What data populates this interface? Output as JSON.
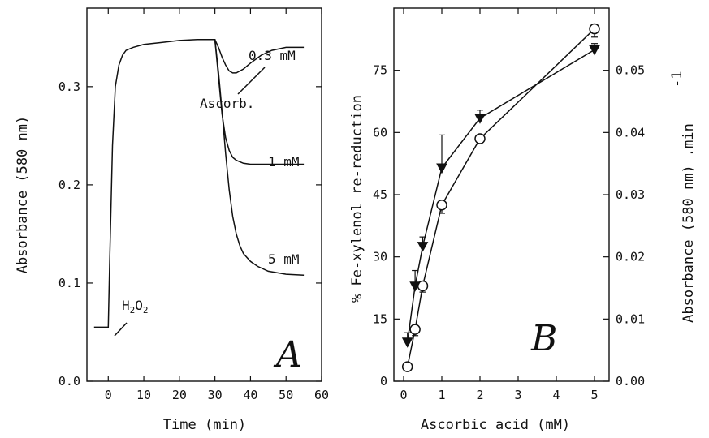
{
  "chart_data": [
    {
      "type": "line",
      "panel_label": "A",
      "xlabel": "Time (min)",
      "ylabel": "Absorbance (580 nm)",
      "xlim": [
        -6,
        60
      ],
      "ylim": [
        0.0,
        0.38
      ],
      "xticks": [
        0,
        10,
        20,
        30,
        40,
        50,
        60
      ],
      "yticks": [
        0.0,
        0.1,
        0.2,
        0.3
      ],
      "annotations": [
        "H₂O₂",
        "Ascorb."
      ],
      "series": [
        {
          "name": "0.3 mM",
          "x": [
            -4,
            0,
            0.4,
            1.2,
            2,
            3,
            4,
            5,
            7,
            10,
            15,
            20,
            25,
            29,
            30,
            31,
            32,
            33,
            34,
            35,
            36,
            38,
            40,
            43,
            46,
            50,
            53,
            55
          ],
          "y": [
            0.055,
            0.055,
            0.12,
            0.24,
            0.3,
            0.322,
            0.332,
            0.337,
            0.34,
            0.343,
            0.345,
            0.347,
            0.348,
            0.348,
            0.348,
            0.34,
            0.33,
            0.322,
            0.316,
            0.314,
            0.314,
            0.318,
            0.324,
            0.332,
            0.337,
            0.34,
            0.34,
            0.34
          ]
        },
        {
          "name": "1 mM",
          "x": [
            29,
            30,
            31,
            32,
            33,
            34,
            35,
            36,
            38,
            40,
            43,
            47,
            50,
            55
          ],
          "y": [
            0.348,
            0.348,
            0.31,
            0.272,
            0.248,
            0.235,
            0.228,
            0.225,
            0.222,
            0.221,
            0.221,
            0.221,
            0.221,
            0.221
          ]
        },
        {
          "name": "5 mM",
          "x": [
            29,
            30,
            31,
            32,
            33,
            34,
            35,
            36,
            37,
            38,
            40,
            42,
            45,
            50,
            55
          ],
          "y": [
            0.348,
            0.348,
            0.315,
            0.275,
            0.232,
            0.195,
            0.168,
            0.15,
            0.138,
            0.13,
            0.122,
            0.117,
            0.112,
            0.109,
            0.108
          ]
        }
      ]
    },
    {
      "type": "scatter",
      "panel_label": "B",
      "xlabel": "Ascorbic acid (mM)",
      "ylabel": "% Fe-xylenol re-reduction",
      "y2label": "Absorbance (580 nm) .min",
      "y2label_superscript": "-1",
      "xlim": [
        0,
        5.2
      ],
      "ylim": [
        0,
        90
      ],
      "y2lim": [
        0,
        0.06
      ],
      "xticks": [
        0,
        1,
        2,
        3,
        4,
        5
      ],
      "yticks": [
        0,
        15,
        30,
        45,
        60,
        75
      ],
      "y2ticks": [
        "0.00",
        "0.01",
        "0.02",
        "0.03",
        "0.04",
        "0.05"
      ],
      "series": [
        {
          "marker": "open-circle",
          "axis": "left",
          "x": [
            0.1,
            0.3,
            0.5,
            1,
            2,
            5
          ],
          "y": [
            3.5,
            12.5,
            23,
            42.5,
            58.5,
            85
          ],
          "err": [
            0,
            1.5,
            1.5,
            2,
            0,
            2
          ]
        },
        {
          "marker": "filled-triangle",
          "axis": "right",
          "x": [
            0.1,
            0.3,
            0.5,
            1,
            2,
            5
          ],
          "y": [
            0.0063,
            0.0153,
            0.0217,
            0.0343,
            0.0423,
            0.0533
          ],
          "err": [
            0.0015,
            0.0025,
            0.0015,
            0.0053,
            0.0013,
            0.001
          ]
        }
      ]
    }
  ]
}
